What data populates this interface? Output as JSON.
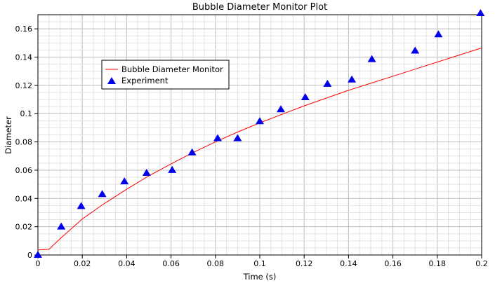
{
  "chart_data": {
    "type": "scatter",
    "title": "Bubble Diameter Monitor Plot",
    "xlabel": "Time (s)",
    "ylabel": "Diameter",
    "xlim": [
      0,
      0.2
    ],
    "ylim": [
      0,
      0.17
    ],
    "x_ticks": [
      0,
      0.02,
      0.04,
      0.06,
      0.08,
      0.1,
      0.12,
      0.14,
      0.16,
      0.18,
      0.2
    ],
    "x_tick_labels": [
      "0",
      "0.02",
      "0.04",
      "0.06",
      "0.08",
      "0.1",
      "0.12",
      "0.14",
      "0.16",
      "0.18",
      "0.2"
    ],
    "y_ticks": [
      0,
      0.02,
      0.04,
      0.06,
      0.08,
      0.1,
      0.12,
      0.14,
      0.16
    ],
    "y_tick_labels": [
      "0",
      "0.02",
      "0.04",
      "0.06",
      "0.08",
      "0.1",
      "0.12",
      "0.14",
      "0.16"
    ],
    "grid": true,
    "legend_position": "top-left",
    "series": [
      {
        "name": "Bubble Diameter Monitor",
        "kind": "line",
        "color": "#ff0000",
        "x": [
          0,
          0.005,
          0.01,
          0.02,
          0.03,
          0.04,
          0.05,
          0.06,
          0.07,
          0.08,
          0.09,
          0.1,
          0.11,
          0.12,
          0.13,
          0.14,
          0.15,
          0.16,
          0.17,
          0.18,
          0.19,
          0.2
        ],
        "y": [
          0.0035,
          0.004,
          0.0115,
          0.0255,
          0.0365,
          0.0465,
          0.056,
          0.0645,
          0.0725,
          0.08,
          0.087,
          0.0935,
          0.0995,
          0.1055,
          0.111,
          0.1165,
          0.1215,
          0.1265,
          0.1315,
          0.1365,
          0.1415,
          0.1465
        ]
      },
      {
        "name": "Experiment",
        "kind": "scatter",
        "marker": "triangle",
        "color": "#0000ee",
        "x": [
          0,
          0.0105,
          0.0195,
          0.029,
          0.039,
          0.049,
          0.0605,
          0.0695,
          0.081,
          0.09,
          0.1,
          0.1095,
          0.1205,
          0.1305,
          0.1415,
          0.1505,
          0.17,
          0.1805,
          0.1995
        ],
        "y": [
          0,
          0.02,
          0.0345,
          0.043,
          0.052,
          0.058,
          0.06,
          0.0725,
          0.0825,
          0.0825,
          0.0945,
          0.103,
          0.1115,
          0.121,
          0.124,
          0.1385,
          0.1445,
          0.156,
          0.171
        ]
      }
    ]
  }
}
